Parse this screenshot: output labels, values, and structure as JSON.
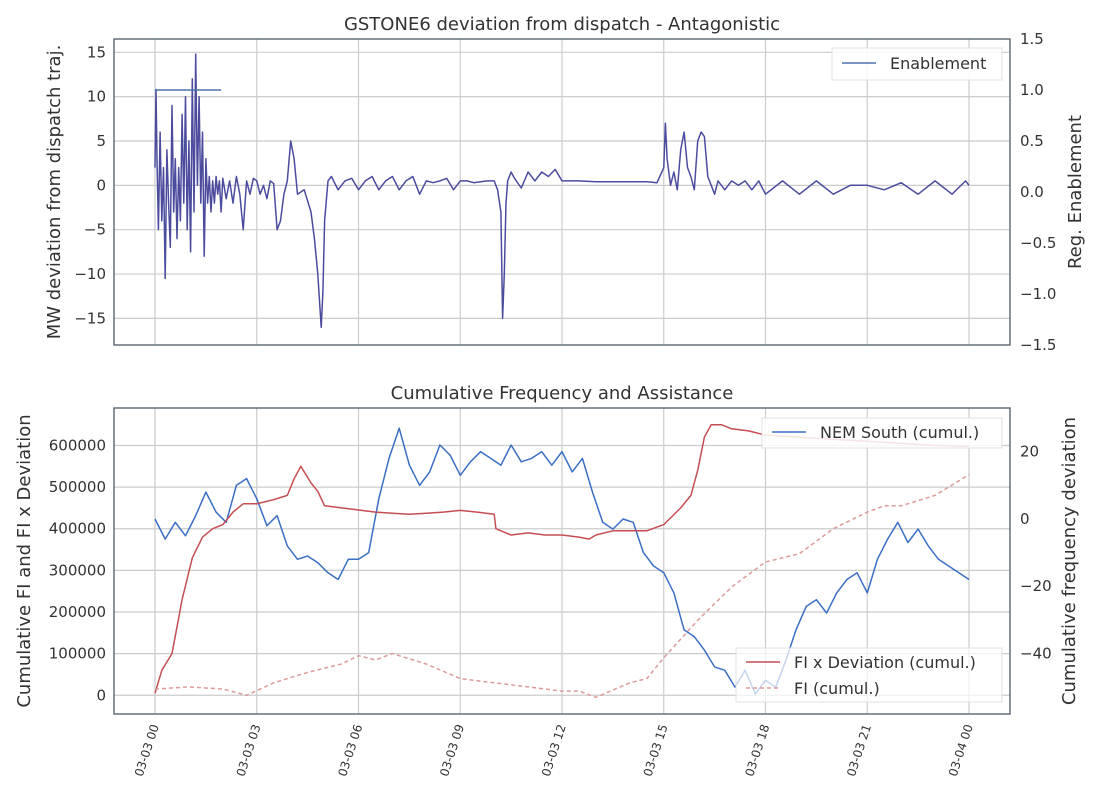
{
  "chart_data": [
    {
      "type": "line",
      "title": "GSTONE6 deviation from dispatch - Antagonistic",
      "ylabel": "MW deviation from dispatch traj.",
      "ylabel_right": "Reg. Enablement",
      "x_range": [
        "2024-03-03 00:00",
        "2024-03-04 00:00"
      ],
      "ylim": [
        -18,
        16.5
      ],
      "ylim_right": [
        -1.5,
        1.5
      ],
      "yticks": [
        "15",
        "10",
        "5",
        "0",
        "−5",
        "−10",
        "−15"
      ],
      "yticks_right": [
        "1.5",
        "1.0",
        "0.5",
        "0.0",
        "−0.5",
        "−1.0",
        "−1.5"
      ],
      "grid": true,
      "legend_position": "top-right",
      "series": [
        {
          "name": "",
          "axis": "left",
          "color": "#4c4c9f",
          "x_hours": [
            0,
            0.03,
            0.06,
            0.1,
            0.15,
            0.2,
            0.25,
            0.3,
            0.35,
            0.4,
            0.45,
            0.5,
            0.55,
            0.6,
            0.65,
            0.7,
            0.75,
            0.8,
            0.85,
            0.9,
            0.95,
            1.0,
            1.05,
            1.1,
            1.15,
            1.2,
            1.25,
            1.3,
            1.35,
            1.4,
            1.45,
            1.5,
            1.55,
            1.6,
            1.65,
            1.7,
            1.75,
            1.8,
            1.85,
            1.9,
            1.95,
            2.0,
            2.1,
            2.2,
            2.3,
            2.4,
            2.5,
            2.6,
            2.7,
            2.8,
            2.9,
            3.0,
            3.1,
            3.2,
            3.3,
            3.4,
            3.5,
            3.6,
            3.7,
            3.8,
            3.9,
            4.0,
            4.1,
            4.2,
            4.4,
            4.6,
            4.7,
            4.8,
            4.85,
            4.9,
            4.95,
            5.0,
            5.1,
            5.2,
            5.4,
            5.6,
            5.8,
            6.0,
            6.2,
            6.4,
            6.6,
            6.8,
            7.0,
            7.2,
            7.4,
            7.6,
            7.8,
            8.0,
            8.2,
            8.4,
            8.6,
            8.8,
            9.0,
            9.2,
            9.4,
            9.6,
            9.8,
            10.0,
            10.1,
            10.2,
            10.25,
            10.3,
            10.35,
            10.4,
            10.5,
            10.6,
            10.8,
            11.0,
            11.2,
            11.4,
            11.6,
            11.8,
            12.0,
            12.5,
            13.0,
            13.5,
            14.0,
            14.5,
            14.8,
            15.0,
            15.05,
            15.1,
            15.2,
            15.3,
            15.4,
            15.5,
            15.6,
            15.7,
            15.8,
            15.9,
            16.0,
            16.1,
            16.2,
            16.3,
            16.4,
            16.5,
            16.6,
            16.8,
            17.0,
            17.2,
            17.4,
            17.6,
            17.8,
            18.0,
            18.5,
            19.0,
            19.5,
            20.0,
            20.5,
            21.0,
            21.5,
            22.0,
            22.5,
            23.0,
            23.5,
            23.9,
            24.0
          ],
          "y": [
            2,
            10.8,
            3,
            -5,
            6,
            -4,
            2,
            -10.5,
            4,
            -2,
            -7,
            9,
            -3,
            3,
            -6,
            2,
            -4,
            8,
            -2,
            10,
            -5,
            5,
            -7.5,
            12,
            -3,
            14.8,
            0,
            10,
            -2,
            6,
            -8,
            3,
            -2,
            1,
            -3,
            0.5,
            -2,
            1,
            -1,
            0.5,
            -3,
            0.8,
            -1.5,
            0.5,
            -2,
            1,
            -1,
            -5,
            0.5,
            -1,
            0.8,
            0.5,
            -1,
            0,
            -1.5,
            0.5,
            0.2,
            -5,
            -4,
            -1,
            0.5,
            5,
            3,
            -1,
            -0.5,
            -3,
            -6,
            -10,
            -13,
            -16,
            -12,
            -4,
            0.5,
            1,
            -0.5,
            0.5,
            0.8,
            -0.5,
            0.5,
            1,
            -0.5,
            0.5,
            1,
            -0.5,
            0.5,
            1,
            -1,
            0.5,
            0.3,
            0.5,
            0.8,
            -0.5,
            0.5,
            0.5,
            0.3,
            0.4,
            0.5,
            0.5,
            -0.5,
            -3,
            -15,
            -10,
            -2,
            0.5,
            1.5,
            0.8,
            -0.3,
            1.5,
            0.5,
            1.5,
            1,
            1.8,
            0.5,
            0.5,
            0.4,
            0.4,
            0.4,
            0.4,
            0.3,
            2,
            7,
            3,
            0,
            1.5,
            -0.5,
            4,
            6,
            2,
            1,
            -0.5,
            5,
            6,
            5.5,
            1,
            0,
            -1,
            0.5,
            -0.5,
            0.5,
            0,
            0.5,
            -0.5,
            0.5,
            -1,
            0.5,
            -1,
            0.5,
            -1,
            0,
            0,
            -0.5,
            0.3,
            -1,
            0.5,
            -1,
            0.5,
            0
          ]
        },
        {
          "name": "Enablement",
          "axis": "right",
          "color": "#4c72b0",
          "x_hours": [
            0,
            1.95
          ],
          "y": [
            1.0,
            1.0
          ]
        }
      ]
    },
    {
      "type": "line",
      "title": "Cumulative Frequency and Assistance",
      "ylabel": "Cumulative FI and FI x Deviation",
      "ylabel_right": "Cumulative frequency deviation",
      "x_range": [
        "2024-03-03 00:00",
        "2024-03-04 00:00"
      ],
      "xticks": [
        "03-03 00",
        "03-03 03",
        "03-03 06",
        "03-03 09",
        "03-03 12",
        "03-03 15",
        "03-03 18",
        "03-03 21",
        "03-04 00"
      ],
      "ylim": [
        -45000,
        690000
      ],
      "ylim_right": [
        -58,
        33
      ],
      "yticks": [
        "600000",
        "500000",
        "400000",
        "300000",
        "200000",
        "100000",
        "0"
      ],
      "yticks_right": [
        "20",
        "0",
        "−20",
        "−40"
      ],
      "grid": true,
      "series": [
        {
          "name": "NEM South (cumul.)",
          "axis": "right",
          "legend_position": "top-right",
          "color": "#3a6fc4",
          "x_hours": [
            0,
            0.3,
            0.6,
            0.9,
            1.2,
            1.5,
            1.8,
            2.1,
            2.4,
            2.7,
            3.0,
            3.3,
            3.6,
            3.9,
            4.2,
            4.5,
            4.8,
            5.1,
            5.4,
            5.7,
            6.0,
            6.3,
            6.6,
            6.9,
            7.2,
            7.5,
            7.8,
            8.1,
            8.4,
            8.7,
            9.0,
            9.3,
            9.6,
            9.9,
            10.2,
            10.5,
            10.8,
            11.1,
            11.4,
            11.7,
            12.0,
            12.3,
            12.6,
            12.9,
            13.2,
            13.5,
            13.8,
            14.1,
            14.4,
            14.7,
            15.0,
            15.3,
            15.6,
            15.9,
            16.2,
            16.5,
            16.8,
            17.1,
            17.4,
            17.7,
            18.0,
            18.3,
            18.6,
            18.9,
            19.2,
            19.5,
            19.8,
            20.1,
            20.4,
            20.7,
            21.0,
            21.3,
            21.6,
            21.9,
            22.2,
            22.5,
            22.8,
            23.1,
            23.4,
            23.7,
            24.0
          ],
          "y": [
            0,
            -6,
            -1,
            -5,
            1,
            8,
            2,
            -1,
            10,
            12,
            6,
            -2,
            1,
            -8,
            -12,
            -11,
            -13,
            -16,
            -18,
            -12,
            -12,
            -10,
            6,
            18,
            27,
            16,
            10,
            14,
            22,
            19,
            13,
            17,
            20,
            18,
            16,
            22,
            17,
            18,
            20,
            16,
            20,
            14,
            18,
            8,
            -1,
            -3,
            0,
            -1,
            -10,
            -14,
            -16,
            -22,
            -33,
            -35,
            -39,
            -44,
            -45,
            -50,
            -45,
            -52,
            -48,
            -50,
            -42,
            -33,
            -26,
            -24,
            -28,
            -22,
            -18,
            -16,
            -22,
            -12,
            -6,
            -1,
            -7,
            -3,
            -8,
            -12,
            -14,
            -16,
            -18
          ]
        },
        {
          "name": "FI x Deviation (cumul.)",
          "axis": "left",
          "legend_position": "bottom-right",
          "color": "#c44e52",
          "x_hours": [
            0,
            0.2,
            0.5,
            0.8,
            1.1,
            1.4,
            1.7,
            2.0,
            2.3,
            2.6,
            3.0,
            3.5,
            3.9,
            4.1,
            4.3,
            4.6,
            4.8,
            5.0,
            5.5,
            6.0,
            6.5,
            7.0,
            7.5,
            8.0,
            8.5,
            9.0,
            9.5,
            10.0,
            10.05,
            10.5,
            11.0,
            11.5,
            12.0,
            12.5,
            12.8,
            13.0,
            13.5,
            14.0,
            14.5,
            15.0,
            15.5,
            15.8,
            16.0,
            16.2,
            16.4,
            16.7,
            17.0,
            17.5,
            18.0,
            18.5,
            19.0,
            20.0,
            21.0,
            22.0,
            23.0,
            24.0
          ],
          "y": [
            5000,
            60000,
            100000,
            230000,
            330000,
            380000,
            400000,
            410000,
            440000,
            460000,
            460000,
            470000,
            480000,
            520000,
            550000,
            510000,
            490000,
            455000,
            450000,
            445000,
            440000,
            437000,
            435000,
            437000,
            440000,
            444000,
            440000,
            435000,
            400000,
            385000,
            390000,
            385000,
            385000,
            380000,
            375000,
            385000,
            395000,
            395000,
            395000,
            410000,
            450000,
            480000,
            540000,
            620000,
            650000,
            650000,
            640000,
            635000,
            625000,
            622000,
            620000,
            615000,
            610000,
            605000,
            600000,
            598000
          ]
        },
        {
          "name": "FI (cumul.)",
          "axis": "left",
          "legend_position": "bottom-right",
          "color": "#dd9a9a",
          "dashed": true,
          "x_hours": [
            0,
            1.0,
            2.0,
            2.7,
            3.5,
            4.5,
            5.5,
            6.0,
            6.5,
            7.0,
            8.0,
            9.0,
            10.0,
            11.0,
            12.0,
            12.5,
            13.0,
            14.0,
            14.5,
            15.0,
            16.0,
            17.0,
            18.0,
            19.0,
            20.0,
            21.0,
            21.5,
            22.0,
            23.0,
            24.0
          ],
          "y": [
            15000,
            20000,
            15000,
            0,
            30000,
            55000,
            75000,
            95000,
            85000,
            100000,
            75000,
            40000,
            30000,
            20000,
            10000,
            10000,
            -5000,
            30000,
            40000,
            90000,
            180000,
            260000,
            320000,
            340000,
            400000,
            440000,
            455000,
            455000,
            480000,
            530000
          ]
        }
      ]
    }
  ]
}
